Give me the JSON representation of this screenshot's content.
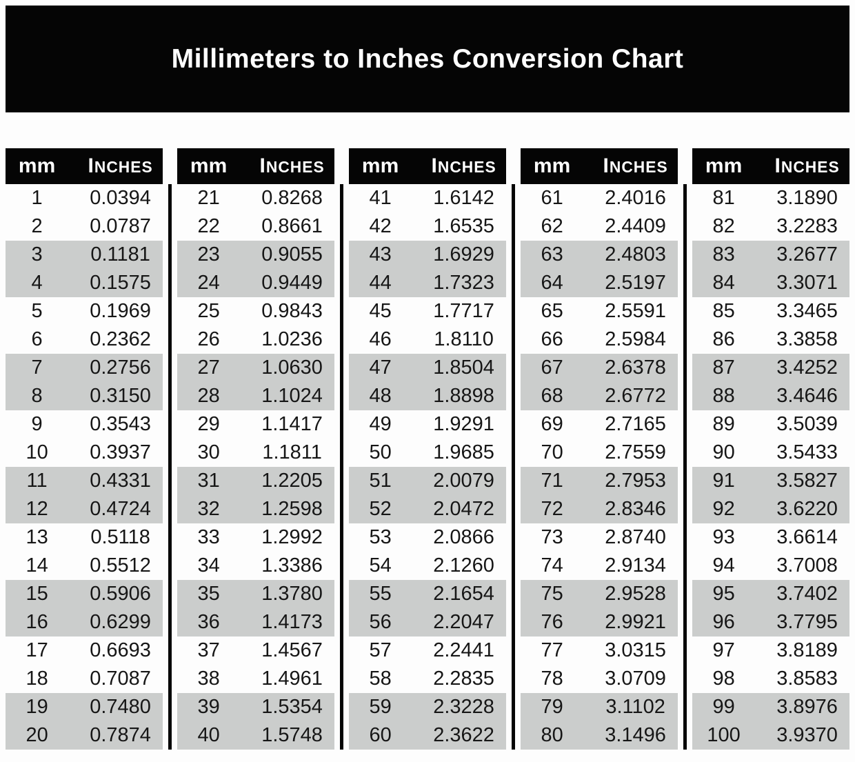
{
  "title": "Millimeters to Inches Conversion Chart",
  "headers": {
    "mm": "mm",
    "inches": "Inches"
  },
  "colors": {
    "banner_bg": "#050505",
    "header_bg": "#050505",
    "header_text": "#ffffff",
    "alt_row_bg": "#cbcdcc",
    "divider": "#050505",
    "body_text": "#161616"
  },
  "tables": [
    {
      "rows": [
        [
          "1",
          "0.0394"
        ],
        [
          "2",
          "0.0787"
        ],
        [
          "3",
          "0.1181"
        ],
        [
          "4",
          "0.1575"
        ],
        [
          "5",
          "0.1969"
        ],
        [
          "6",
          "0.2362"
        ],
        [
          "7",
          "0.2756"
        ],
        [
          "8",
          "0.3150"
        ],
        [
          "9",
          "0.3543"
        ],
        [
          "10",
          "0.3937"
        ],
        [
          "11",
          "0.4331"
        ],
        [
          "12",
          "0.4724"
        ],
        [
          "13",
          "0.5118"
        ],
        [
          "14",
          "0.5512"
        ],
        [
          "15",
          "0.5906"
        ],
        [
          "16",
          "0.6299"
        ],
        [
          "17",
          "0.6693"
        ],
        [
          "18",
          "0.7087"
        ],
        [
          "19",
          "0.7480"
        ],
        [
          "20",
          "0.7874"
        ]
      ]
    },
    {
      "rows": [
        [
          "21",
          "0.8268"
        ],
        [
          "22",
          "0.8661"
        ],
        [
          "23",
          "0.9055"
        ],
        [
          "24",
          "0.9449"
        ],
        [
          "25",
          "0.9843"
        ],
        [
          "26",
          "1.0236"
        ],
        [
          "27",
          "1.0630"
        ],
        [
          "28",
          "1.1024"
        ],
        [
          "29",
          "1.1417"
        ],
        [
          "30",
          "1.1811"
        ],
        [
          "31",
          "1.2205"
        ],
        [
          "32",
          "1.2598"
        ],
        [
          "33",
          "1.2992"
        ],
        [
          "34",
          "1.3386"
        ],
        [
          "35",
          "1.3780"
        ],
        [
          "36",
          "1.4173"
        ],
        [
          "37",
          "1.4567"
        ],
        [
          "38",
          "1.4961"
        ],
        [
          "39",
          "1.5354"
        ],
        [
          "40",
          "1.5748"
        ]
      ]
    },
    {
      "rows": [
        [
          "41",
          "1.6142"
        ],
        [
          "42",
          "1.6535"
        ],
        [
          "43",
          "1.6929"
        ],
        [
          "44",
          "1.7323"
        ],
        [
          "45",
          "1.7717"
        ],
        [
          "46",
          "1.8110"
        ],
        [
          "47",
          "1.8504"
        ],
        [
          "48",
          "1.8898"
        ],
        [
          "49",
          "1.9291"
        ],
        [
          "50",
          "1.9685"
        ],
        [
          "51",
          "2.0079"
        ],
        [
          "52",
          "2.0472"
        ],
        [
          "53",
          "2.0866"
        ],
        [
          "54",
          "2.1260"
        ],
        [
          "55",
          "2.1654"
        ],
        [
          "56",
          "2.2047"
        ],
        [
          "57",
          "2.2441"
        ],
        [
          "58",
          "2.2835"
        ],
        [
          "59",
          "2.3228"
        ],
        [
          "60",
          "2.3622"
        ]
      ]
    },
    {
      "rows": [
        [
          "61",
          "2.4016"
        ],
        [
          "62",
          "2.4409"
        ],
        [
          "63",
          "2.4803"
        ],
        [
          "64",
          "2.5197"
        ],
        [
          "65",
          "2.5591"
        ],
        [
          "66",
          "2.5984"
        ],
        [
          "67",
          "2.6378"
        ],
        [
          "68",
          "2.6772"
        ],
        [
          "69",
          "2.7165"
        ],
        [
          "70",
          "2.7559"
        ],
        [
          "71",
          "2.7953"
        ],
        [
          "72",
          "2.8346"
        ],
        [
          "73",
          "2.8740"
        ],
        [
          "74",
          "2.9134"
        ],
        [
          "75",
          "2.9528"
        ],
        [
          "76",
          "2.9921"
        ],
        [
          "77",
          "3.0315"
        ],
        [
          "78",
          "3.0709"
        ],
        [
          "79",
          "3.1102"
        ],
        [
          "80",
          "3.1496"
        ]
      ]
    },
    {
      "rows": [
        [
          "81",
          "3.1890"
        ],
        [
          "82",
          "3.2283"
        ],
        [
          "83",
          "3.2677"
        ],
        [
          "84",
          "3.3071"
        ],
        [
          "85",
          "3.3465"
        ],
        [
          "86",
          "3.3858"
        ],
        [
          "87",
          "3.4252"
        ],
        [
          "88",
          "3.4646"
        ],
        [
          "89",
          "3.5039"
        ],
        [
          "90",
          "3.5433"
        ],
        [
          "91",
          "3.5827"
        ],
        [
          "92",
          "3.6220"
        ],
        [
          "93",
          "3.6614"
        ],
        [
          "94",
          "3.7008"
        ],
        [
          "95",
          "3.7402"
        ],
        [
          "96",
          "3.7795"
        ],
        [
          "97",
          "3.8189"
        ],
        [
          "98",
          "3.8583"
        ],
        [
          "99",
          "3.8976"
        ],
        [
          "100",
          "3.9370"
        ]
      ]
    }
  ]
}
